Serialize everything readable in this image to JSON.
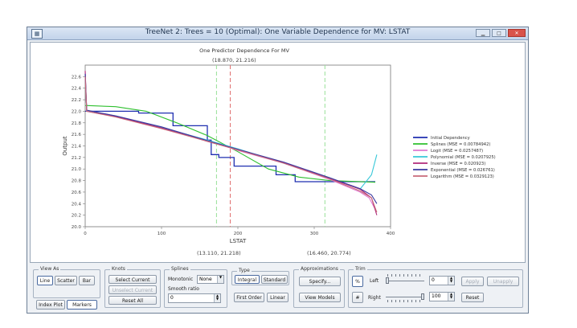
{
  "window": {
    "title": "TreeNet 2: Trees = 10 (Optimal): One Variable Dependence for MV: LSTAT",
    "icon": "chart-window-icon",
    "buttons": {
      "minimize": "▁",
      "maximize": "□",
      "close": "✕"
    }
  },
  "chart": {
    "title": "One Predictor Dependence For MV",
    "top_marker_label": "(18.870, 21.216)",
    "bottom_marker_left": "(13.110, 21.218)",
    "bottom_marker_right": "(16.460, 20.774)"
  },
  "chart_data": {
    "type": "line",
    "title": "One Predictor Dependence For MV",
    "xlabel": "LSTAT",
    "ylabel": "Output",
    "xlim": [
      0,
      400
    ],
    "ylim": [
      20.0,
      22.8
    ],
    "xticks": [
      "0",
      "100",
      "200",
      "300",
      "400"
    ],
    "yticks": [
      "20.0",
      "20.2",
      "20.4",
      "20.6",
      "20.8",
      "21.0",
      "21.2",
      "21.4",
      "21.6",
      "21.8",
      "22.0",
      "22.2",
      "22.4",
      "22.6"
    ],
    "vlines": [
      {
        "x": 172,
        "color": "#98e098"
      },
      {
        "x": 190,
        "color": "#e07070"
      },
      {
        "x": 314,
        "color": "#98e098"
      }
    ],
    "series": [
      {
        "name": "Initial Dependency",
        "color": "#1f2fb0",
        "step": true,
        "x": [
          0,
          70,
          70,
          115,
          115,
          160,
          160,
          165,
          165,
          175,
          175,
          195,
          195,
          250,
          250,
          275,
          275,
          380,
          380
        ],
        "y": [
          22.0,
          22.0,
          21.97,
          21.97,
          21.75,
          21.75,
          21.5,
          21.5,
          21.25,
          21.25,
          21.2,
          21.2,
          21.05,
          21.05,
          20.9,
          20.9,
          20.78,
          20.78,
          20.78
        ]
      },
      {
        "name": "Splines (MSE = 0.00784942)",
        "color": "#2fc02f",
        "step": false,
        "x": [
          0,
          40,
          80,
          120,
          160,
          200,
          240,
          280,
          320,
          380
        ],
        "y": [
          22.1,
          22.08,
          22.0,
          21.8,
          21.58,
          21.3,
          21.0,
          20.86,
          20.8,
          20.77
        ]
      },
      {
        "name": "Logit (MSE = 0.0257487)",
        "color": "#e07ad0",
        "step": false,
        "x": [
          0,
          2,
          40,
          100,
          160,
          200,
          260,
          320,
          360,
          372,
          380
        ],
        "y": [
          22.7,
          22.0,
          21.92,
          21.72,
          21.5,
          21.32,
          21.1,
          20.82,
          20.6,
          20.5,
          20.3
        ]
      },
      {
        "name": "Polynomial (MSE = 0.0207925)",
        "color": "#38c8d8",
        "step": false,
        "x": [
          0,
          2,
          40,
          100,
          160,
          200,
          260,
          320,
          360,
          375,
          382
        ],
        "y": [
          22.65,
          22.0,
          21.92,
          21.72,
          21.5,
          21.35,
          21.1,
          20.85,
          20.65,
          20.9,
          21.25
        ]
      },
      {
        "name": "Inverse (MSE = 0.020923)",
        "color": "#b02a7a",
        "step": false,
        "x": [
          0,
          2,
          40,
          100,
          160,
          200,
          260,
          320,
          360,
          375,
          382
        ],
        "y": [
          22.7,
          22.0,
          21.91,
          21.71,
          21.48,
          21.33,
          21.11,
          20.84,
          20.65,
          20.5,
          20.2
        ]
      },
      {
        "name": "Exponential (MSE = 0.026761)",
        "color": "#3a3aa0",
        "step": false,
        "x": [
          0,
          2,
          40,
          100,
          160,
          200,
          260,
          320,
          360,
          375,
          382
        ],
        "y": [
          22.65,
          22.02,
          21.92,
          21.73,
          21.49,
          21.34,
          21.12,
          20.85,
          20.66,
          20.55,
          20.4
        ]
      },
      {
        "name": "Logarithm (MSE = 0.0329123)",
        "color": "#c86a7a",
        "step": false,
        "x": [
          0,
          2,
          40,
          100,
          160,
          200,
          260,
          320,
          360,
          375,
          382
        ],
        "y": [
          22.6,
          22.0,
          21.9,
          21.7,
          21.48,
          21.33,
          21.1,
          20.83,
          20.62,
          20.5,
          20.25
        ]
      }
    ]
  },
  "controls": {
    "view_as": {
      "label": "View As",
      "line": "Line",
      "scatter": "Scatter",
      "bar": "Bar",
      "index_plot": "Index Plot",
      "markers": "Markers"
    },
    "knots": {
      "label": "Knots",
      "select_current": "Select Current",
      "unselect_current": "Unselect Current",
      "reset_all": "Reset All"
    },
    "splines": {
      "label": "Splines",
      "monotonic_label": "Monotonic",
      "monotonic_value": "None",
      "smooth_label": "Smooth ratio",
      "smooth_value": "0"
    },
    "type": {
      "label": "Type",
      "integral": "Integral",
      "standard": "Standard",
      "first_order": "First Order",
      "linear": "Linear"
    },
    "approximations": {
      "label": "Approximations",
      "specify": "Specify...",
      "view_models": "View Models"
    },
    "trim": {
      "label": "Trim",
      "pct": "%",
      "hash": "#",
      "left_label": "Left",
      "left_value": "0",
      "right_label": "Right",
      "right_value": "100",
      "apply": "Apply",
      "unapply": "Unapply",
      "reset": "Reset"
    }
  }
}
